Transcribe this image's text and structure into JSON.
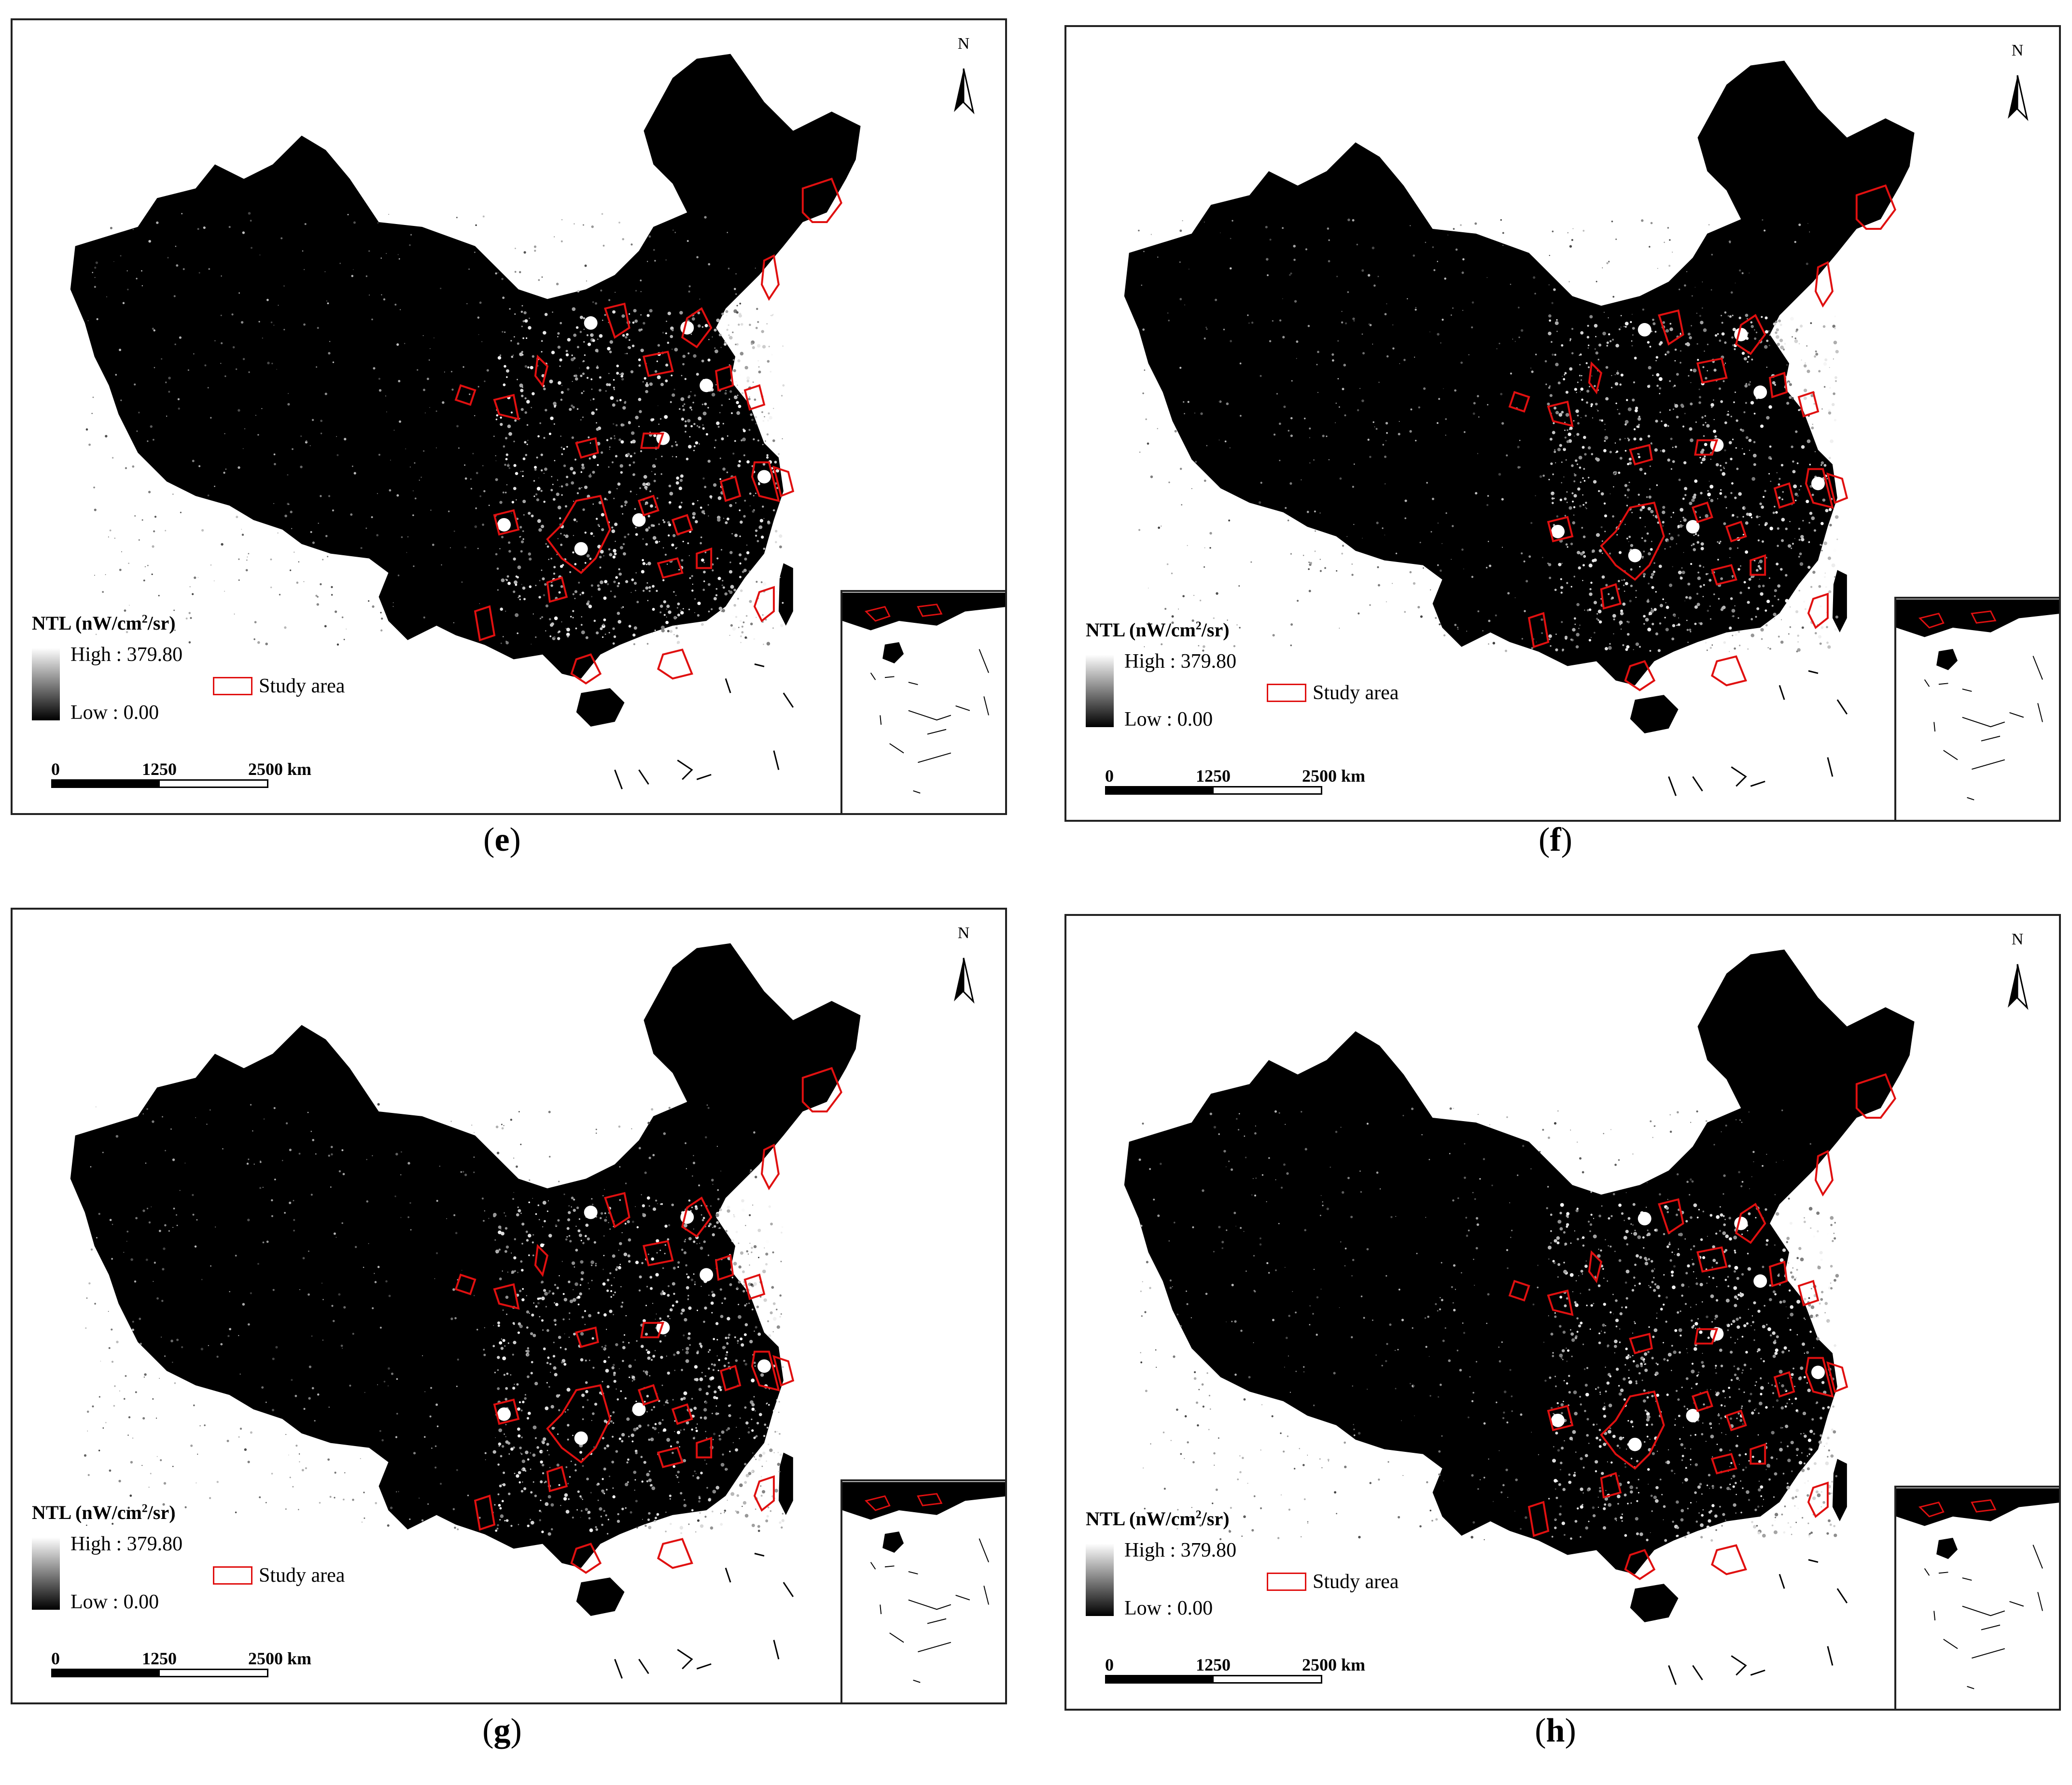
{
  "panels": [
    {
      "id": "e",
      "label": "e"
    },
    {
      "id": "f",
      "label": "f"
    },
    {
      "id": "g",
      "label": "g"
    },
    {
      "id": "h",
      "label": "h"
    }
  ],
  "legend": {
    "title_main": "NTL (nW/cm",
    "title_sup": "2",
    "title_end": "/sr)",
    "high": "High : 379.80",
    "low": "Low : 0.00",
    "study_area": "Study area"
  },
  "scale": {
    "zero": "0",
    "mid": "1250",
    "end": "2500",
    "unit": "km"
  },
  "north": "N",
  "colors": {
    "background": "#000000",
    "boundary": "#e01010",
    "light": "#ffffff"
  }
}
